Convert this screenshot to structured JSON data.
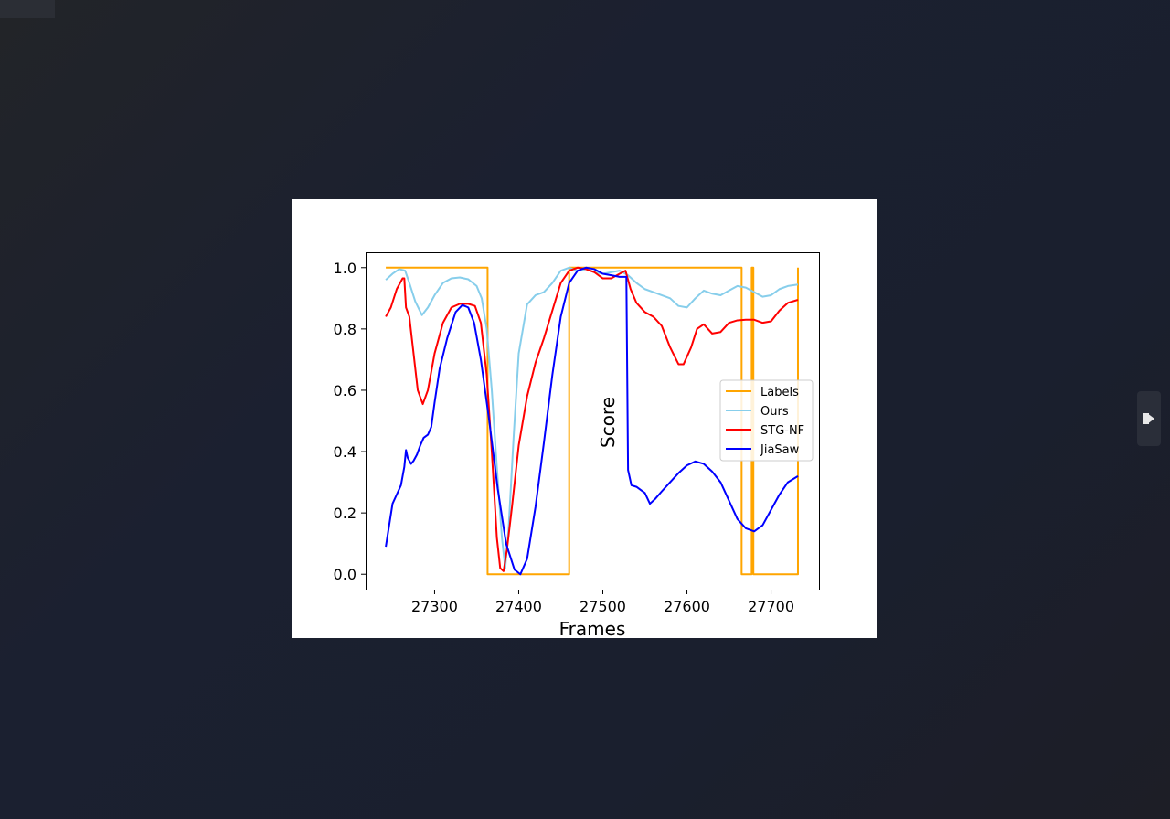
{
  "viewer": {
    "next_icon": "next-arrow-icon",
    "background": "#1b2030"
  },
  "chart_data": {
    "type": "line",
    "title": "",
    "xlabel": "Frames",
    "ylabel": "Score",
    "xlim": [
      27218,
      27757
    ],
    "ylim": [
      -0.05,
      1.05
    ],
    "xticks": [
      27300,
      27400,
      27500,
      27600,
      27700
    ],
    "yticks": [
      0.0,
      0.2,
      0.4,
      0.6,
      0.8,
      1.0
    ],
    "grid": false,
    "legend_position": "center-right",
    "series": [
      {
        "name": "Labels",
        "color": "#ffa500",
        "points": [
          [
            27242,
            1.0
          ],
          [
            27363,
            1.0
          ],
          [
            27363,
            0.0
          ],
          [
            27460,
            0.0
          ],
          [
            27460,
            1.0
          ],
          [
            27665,
            1.0
          ],
          [
            27665,
            0.0
          ],
          [
            27677,
            0.0
          ],
          [
            27677,
            1.0
          ],
          [
            27679,
            1.0
          ],
          [
            27679,
            0.0
          ],
          [
            27732,
            0.0
          ],
          [
            27732,
            1.0
          ]
        ]
      },
      {
        "name": "Ours",
        "color": "#87ceeb",
        "points": [
          [
            27242,
            0.96
          ],
          [
            27250,
            0.98
          ],
          [
            27258,
            0.995
          ],
          [
            27265,
            0.99
          ],
          [
            27270,
            0.95
          ],
          [
            27277,
            0.89
          ],
          [
            27285,
            0.845
          ],
          [
            27292,
            0.87
          ],
          [
            27300,
            0.91
          ],
          [
            27310,
            0.95
          ],
          [
            27320,
            0.965
          ],
          [
            27330,
            0.968
          ],
          [
            27340,
            0.962
          ],
          [
            27350,
            0.94
          ],
          [
            27356,
            0.9
          ],
          [
            27362,
            0.8
          ],
          [
            27368,
            0.6
          ],
          [
            27374,
            0.35
          ],
          [
            27380,
            0.12
          ],
          [
            27384,
            0.02
          ],
          [
            27388,
            0.15
          ],
          [
            27394,
            0.45
          ],
          [
            27400,
            0.72
          ],
          [
            27410,
            0.88
          ],
          [
            27420,
            0.91
          ],
          [
            27430,
            0.92
          ],
          [
            27440,
            0.95
          ],
          [
            27450,
            0.99
          ],
          [
            27460,
            1.0
          ],
          [
            27470,
            0.99
          ],
          [
            27480,
            0.995
          ],
          [
            27490,
            0.985
          ],
          [
            27500,
            0.98
          ],
          [
            27510,
            0.985
          ],
          [
            27520,
            0.99
          ],
          [
            27530,
            0.975
          ],
          [
            27540,
            0.95
          ],
          [
            27550,
            0.93
          ],
          [
            27560,
            0.92
          ],
          [
            27570,
            0.91
          ],
          [
            27580,
            0.9
          ],
          [
            27590,
            0.875
          ],
          [
            27600,
            0.87
          ],
          [
            27610,
            0.9
          ],
          [
            27620,
            0.925
          ],
          [
            27630,
            0.915
          ],
          [
            27640,
            0.91
          ],
          [
            27650,
            0.925
          ],
          [
            27660,
            0.94
          ],
          [
            27670,
            0.935
          ],
          [
            27680,
            0.92
          ],
          [
            27690,
            0.905
          ],
          [
            27700,
            0.91
          ],
          [
            27710,
            0.93
          ],
          [
            27720,
            0.94
          ],
          [
            27732,
            0.945
          ]
        ]
      },
      {
        "name": "STG-NF",
        "color": "#ff0000",
        "points": [
          [
            27242,
            0.84
          ],
          [
            27248,
            0.87
          ],
          [
            27255,
            0.93
          ],
          [
            27262,
            0.965
          ],
          [
            27264,
            0.965
          ],
          [
            27266,
            0.87
          ],
          [
            27270,
            0.84
          ],
          [
            27275,
            0.72
          ],
          [
            27280,
            0.6
          ],
          [
            27286,
            0.555
          ],
          [
            27292,
            0.6
          ],
          [
            27300,
            0.72
          ],
          [
            27310,
            0.82
          ],
          [
            27320,
            0.87
          ],
          [
            27330,
            0.882
          ],
          [
            27340,
            0.882
          ],
          [
            27348,
            0.875
          ],
          [
            27355,
            0.82
          ],
          [
            27362,
            0.65
          ],
          [
            27368,
            0.4
          ],
          [
            27374,
            0.12
          ],
          [
            27378,
            0.02
          ],
          [
            27382,
            0.01
          ],
          [
            27386,
            0.08
          ],
          [
            27392,
            0.22
          ],
          [
            27400,
            0.42
          ],
          [
            27410,
            0.58
          ],
          [
            27420,
            0.69
          ],
          [
            27430,
            0.77
          ],
          [
            27440,
            0.86
          ],
          [
            27450,
            0.95
          ],
          [
            27460,
            0.99
          ],
          [
            27470,
            1.0
          ],
          [
            27480,
            0.995
          ],
          [
            27490,
            0.985
          ],
          [
            27500,
            0.965
          ],
          [
            27510,
            0.965
          ],
          [
            27520,
            0.98
          ],
          [
            27527,
            0.99
          ],
          [
            27533,
            0.93
          ],
          [
            27540,
            0.885
          ],
          [
            27550,
            0.855
          ],
          [
            27560,
            0.84
          ],
          [
            27570,
            0.81
          ],
          [
            27580,
            0.74
          ],
          [
            27590,
            0.685
          ],
          [
            27596,
            0.685
          ],
          [
            27605,
            0.74
          ],
          [
            27612,
            0.8
          ],
          [
            27620,
            0.815
          ],
          [
            27630,
            0.785
          ],
          [
            27640,
            0.79
          ],
          [
            27650,
            0.82
          ],
          [
            27660,
            0.828
          ],
          [
            27670,
            0.83
          ],
          [
            27680,
            0.83
          ],
          [
            27690,
            0.82
          ],
          [
            27700,
            0.825
          ],
          [
            27710,
            0.86
          ],
          [
            27720,
            0.885
          ],
          [
            27732,
            0.895
          ]
        ]
      },
      {
        "name": "JiaSaw",
        "color": "#0000ff",
        "points": [
          [
            27242,
            0.09
          ],
          [
            27246,
            0.16
          ],
          [
            27250,
            0.23
          ],
          [
            27255,
            0.26
          ],
          [
            27260,
            0.29
          ],
          [
            27264,
            0.35
          ],
          [
            27266,
            0.405
          ],
          [
            27268,
            0.38
          ],
          [
            27270,
            0.37
          ],
          [
            27272,
            0.36
          ],
          [
            27275,
            0.37
          ],
          [
            27279,
            0.39
          ],
          [
            27283,
            0.42
          ],
          [
            27287,
            0.445
          ],
          [
            27292,
            0.455
          ],
          [
            27296,
            0.48
          ],
          [
            27300,
            0.56
          ],
          [
            27306,
            0.67
          ],
          [
            27315,
            0.77
          ],
          [
            27325,
            0.855
          ],
          [
            27333,
            0.878
          ],
          [
            27340,
            0.87
          ],
          [
            27347,
            0.82
          ],
          [
            27355,
            0.7
          ],
          [
            27365,
            0.5
          ],
          [
            27375,
            0.28
          ],
          [
            27385,
            0.1
          ],
          [
            27395,
            0.015
          ],
          [
            27402,
            0.0
          ],
          [
            27410,
            0.05
          ],
          [
            27420,
            0.22
          ],
          [
            27430,
            0.43
          ],
          [
            27440,
            0.65
          ],
          [
            27450,
            0.84
          ],
          [
            27460,
            0.95
          ],
          [
            27470,
            0.99
          ],
          [
            27480,
            1.0
          ],
          [
            27490,
            0.995
          ],
          [
            27500,
            0.98
          ],
          [
            27510,
            0.975
          ],
          [
            27520,
            0.97
          ],
          [
            27528,
            0.97
          ],
          [
            27530,
            0.34
          ],
          [
            27534,
            0.29
          ],
          [
            27540,
            0.285
          ],
          [
            27550,
            0.265
          ],
          [
            27556,
            0.23
          ],
          [
            27562,
            0.245
          ],
          [
            27570,
            0.27
          ],
          [
            27580,
            0.3
          ],
          [
            27590,
            0.33
          ],
          [
            27600,
            0.355
          ],
          [
            27610,
            0.368
          ],
          [
            27620,
            0.36
          ],
          [
            27630,
            0.335
          ],
          [
            27640,
            0.3
          ],
          [
            27650,
            0.24
          ],
          [
            27660,
            0.18
          ],
          [
            27670,
            0.15
          ],
          [
            27680,
            0.14
          ],
          [
            27690,
            0.16
          ],
          [
            27700,
            0.21
          ],
          [
            27710,
            0.26
          ],
          [
            27720,
            0.3
          ],
          [
            27732,
            0.32
          ]
        ]
      }
    ]
  }
}
